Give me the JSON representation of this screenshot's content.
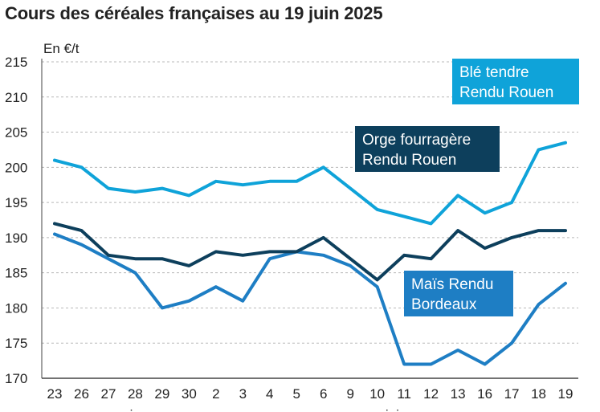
{
  "chart_data": {
    "type": "line",
    "title": "Cours des céréales françaises au 19 juin 2025",
    "ylabel": "En €/t",
    "xlabel": "",
    "ylim": [
      170,
      215
    ],
    "yticks": [
      170,
      175,
      180,
      185,
      190,
      195,
      200,
      205,
      210,
      215
    ],
    "categories": [
      "23",
      "26",
      "27",
      "28",
      "29",
      "30",
      "2",
      "3",
      "4",
      "5",
      "6",
      "9",
      "10",
      "11",
      "12",
      "13",
      "16",
      "17",
      "18",
      "19"
    ],
    "month_labels": [
      {
        "label": "mai",
        "category_index": 2.5
      },
      {
        "label": "juin",
        "category_index": 12.7
      }
    ],
    "series": [
      {
        "name": "Blé tendre Rendu Rouen",
        "label_lines": [
          "Blé tendre",
          "Rendu Rouen"
        ],
        "color": "#0fa3d9",
        "values": [
          201,
          200,
          197,
          196.5,
          197,
          196,
          198,
          197.5,
          198,
          198,
          200,
          197,
          194,
          193,
          192,
          196,
          193.5,
          195,
          202.5,
          203.5
        ]
      },
      {
        "name": "Orge fourragère Rendu Rouen",
        "label_lines": [
          "Orge fourragère",
          "Rendu Rouen"
        ],
        "color": "#0d3f5c",
        "values": [
          192,
          191,
          187.5,
          187,
          187,
          186,
          188,
          187.5,
          188,
          188,
          190,
          187,
          184,
          187.5,
          187,
          191,
          188.5,
          190,
          191,
          191
        ]
      },
      {
        "name": "Maïs Rendu Bordeaux",
        "label_lines": [
          "Maïs Rendu",
          "Bordeaux"
        ],
        "color": "#1e7ec4",
        "values": [
          190.5,
          189,
          187,
          185,
          180,
          181,
          183,
          181,
          187,
          188,
          187.5,
          186,
          183,
          172,
          172,
          174,
          172,
          175,
          180.5,
          183.5
        ]
      }
    ],
    "grid": true
  }
}
